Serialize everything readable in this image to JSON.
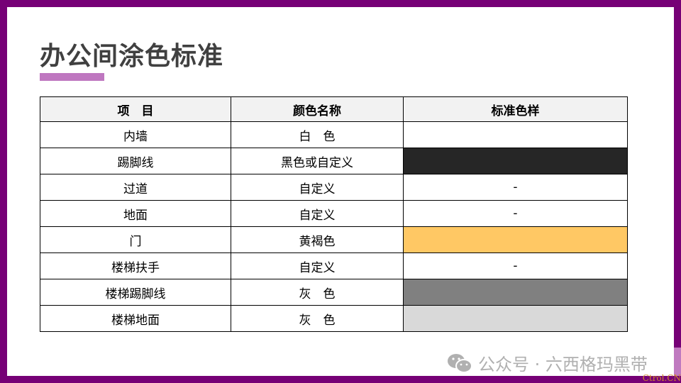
{
  "title": "办公间涂色标准",
  "accent_color": "#bf77c0",
  "frame_color": "#760076",
  "table": {
    "headers": [
      "项　目",
      "颜色名称",
      "标准色样"
    ],
    "rows": [
      {
        "item": "内墙",
        "color_name": "白　色",
        "swatch": "#ffffff",
        "swatch_text": ""
      },
      {
        "item": "踢脚线",
        "color_name": "黑色或自定义",
        "swatch": "#262626",
        "swatch_text": ""
      },
      {
        "item": "过道",
        "color_name": "自定义",
        "swatch": "#ffffff",
        "swatch_text": "-"
      },
      {
        "item": "地面",
        "color_name": "自定义",
        "swatch": "#ffffff",
        "swatch_text": "-"
      },
      {
        "item": "门",
        "color_name": "黄褐色",
        "swatch": "#ffc864",
        "swatch_text": ""
      },
      {
        "item": "楼梯扶手",
        "color_name": "自定义",
        "swatch": "#ffffff",
        "swatch_text": "-"
      },
      {
        "item": "楼梯踢脚线",
        "color_name": "灰　色",
        "swatch": "#808080",
        "swatch_text": ""
      },
      {
        "item": "楼梯地面",
        "color_name": "灰　色",
        "swatch": "#d9d9d9",
        "swatch_text": ""
      }
    ]
  },
  "watermark": {
    "icon": "wechat-icon",
    "text": "公众号 · 六西格玛黑带"
  },
  "corner_mark": "Ctrol.CN"
}
